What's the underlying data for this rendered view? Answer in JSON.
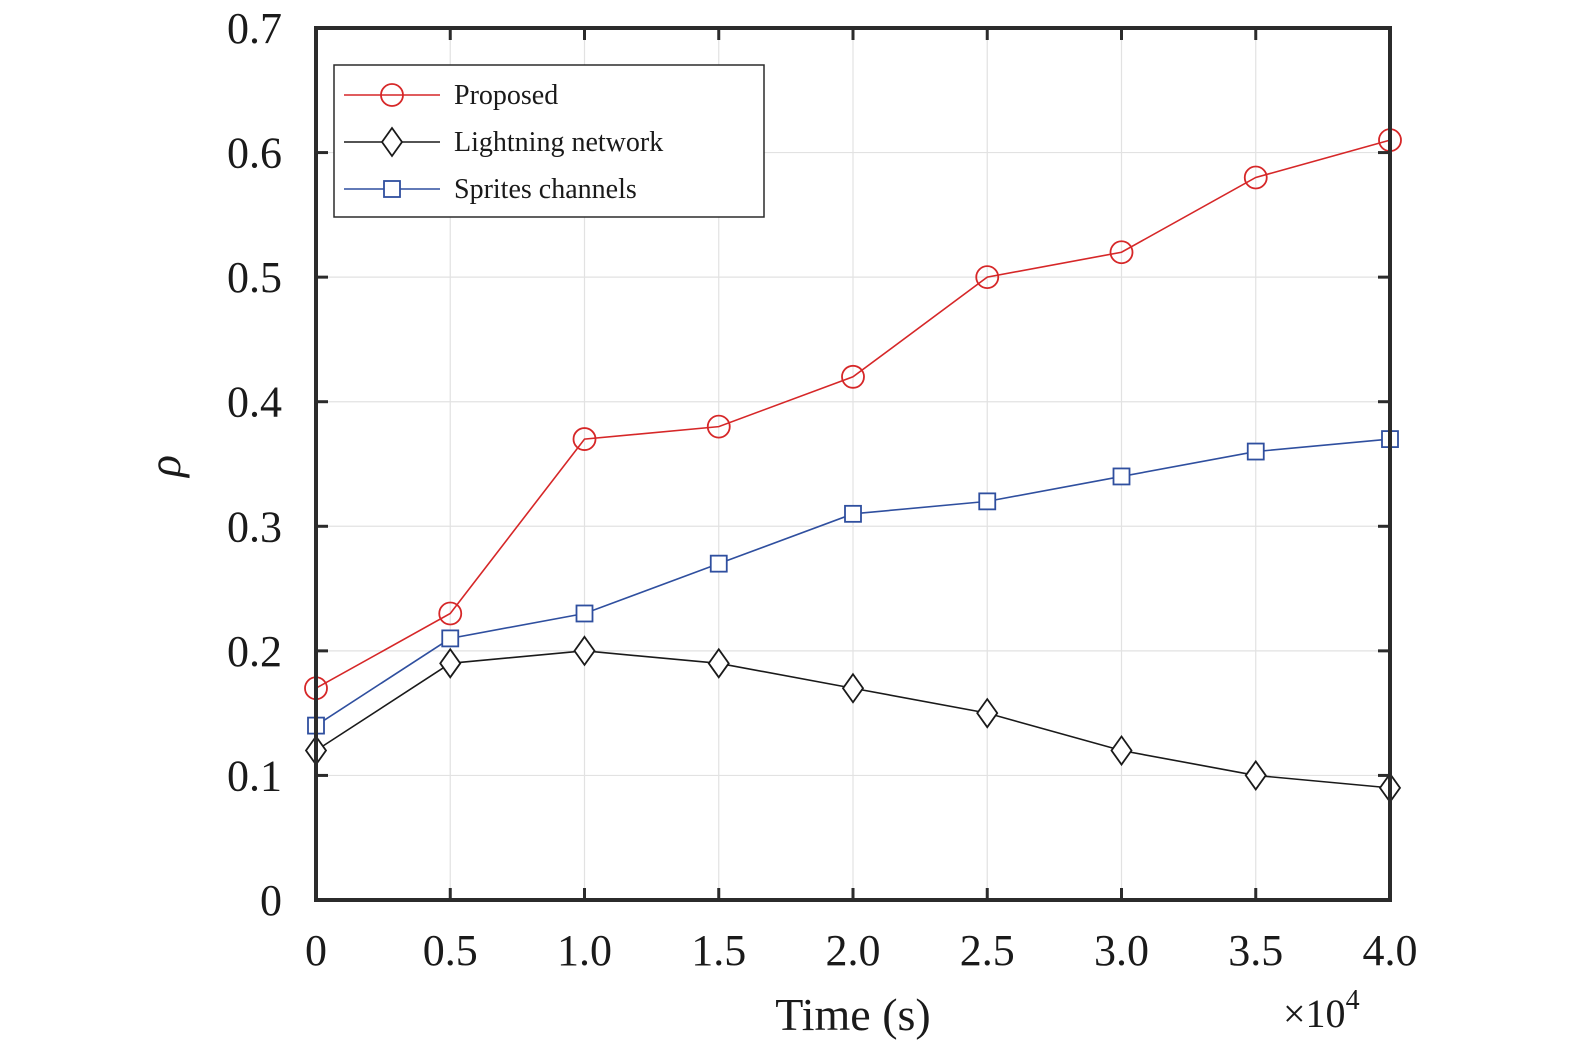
{
  "chart_data": {
    "type": "line",
    "xlabel": "Time (s)",
    "ylabel": "ρ",
    "x_multiplier_label": "×10",
    "x_multiplier_exponent": "4",
    "x": [
      0,
      0.5,
      1.0,
      1.5,
      2.0,
      2.5,
      3.0,
      3.5,
      4.0
    ],
    "x_tick_labels": [
      "0",
      "0.5",
      "1.0",
      "1.5",
      "2.0",
      "2.5",
      "3.0",
      "3.5",
      "4.0"
    ],
    "xlim": [
      0,
      4.0
    ],
    "y_ticks": [
      0,
      0.1,
      0.2,
      0.3,
      0.4,
      0.5,
      0.6,
      0.7
    ],
    "y_tick_labels": [
      "0",
      "0.1",
      "0.2",
      "0.3",
      "0.4",
      "0.5",
      "0.6",
      "0.7"
    ],
    "ylim": [
      0,
      0.7
    ],
    "grid": true,
    "legend_position": "top-left",
    "series": [
      {
        "name": "Proposed",
        "color": "#d62728",
        "marker": "circle",
        "values": [
          0.17,
          0.23,
          0.37,
          0.38,
          0.42,
          0.5,
          0.52,
          0.58,
          0.61
        ]
      },
      {
        "name": "Lightning network",
        "color": "#1a1a1a",
        "marker": "diamond",
        "values": [
          0.12,
          0.19,
          0.2,
          0.19,
          0.17,
          0.15,
          0.12,
          0.1,
          0.09
        ]
      },
      {
        "name": "Sprites channels",
        "color": "#2f4f9f",
        "marker": "square",
        "values": [
          0.14,
          0.21,
          0.23,
          0.27,
          0.31,
          0.32,
          0.34,
          0.36,
          0.37
        ]
      }
    ]
  }
}
